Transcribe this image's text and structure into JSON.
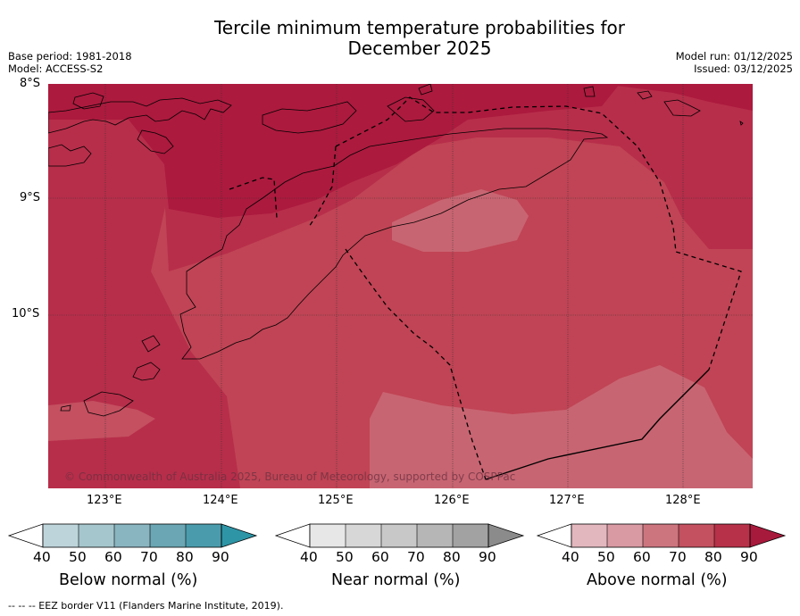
{
  "title": {
    "line1": "Tercile minimum temperature probabilities for",
    "line2": "December 2025"
  },
  "meta_left": {
    "base_period": "Base period: 1981-2018",
    "model": "Model: ACCESS-S2"
  },
  "meta_right": {
    "model_run": "Model run: 01/12/2025",
    "issued": "Issued: 03/12/2025"
  },
  "map": {
    "lat_labels": [
      "8°S",
      "9°S",
      "10°S"
    ],
    "lon_labels": [
      "123°E",
      "124°E",
      "125°E",
      "126°E",
      "127°E",
      "128°E"
    ],
    "copyright": "© Commonwealth of Australia 2025, Bureau of Meteorology, supported by COSPPac",
    "category": "Above normal",
    "probability_bands_percent": [
      90,
      80,
      70,
      60
    ],
    "colors": {
      "above_90": "#ac1a3e",
      "above_80": "#b72e4a",
      "above_70": "#c04455",
      "above_60": "#c86572"
    }
  },
  "colorbars": [
    {
      "title": "Below normal (%)",
      "ticks": [
        "40",
        "50",
        "60",
        "70",
        "80",
        "90"
      ],
      "colors": [
        "#bdd4da",
        "#a5c6cd",
        "#89b5c0",
        "#6aa6b3",
        "#4a9cac",
        "#2e95a6"
      ]
    },
    {
      "title": "Near normal (%)",
      "ticks": [
        "40",
        "50",
        "60",
        "70",
        "80",
        "90"
      ],
      "colors": [
        "#e7e7e7",
        "#d7d7d7",
        "#c8c8c8",
        "#b6b6b6",
        "#a2a2a2",
        "#8b8b8b"
      ]
    },
    {
      "title": "Above normal (%)",
      "ticks": [
        "40",
        "50",
        "60",
        "70",
        "80",
        "90"
      ],
      "colors": [
        "#e3b7be",
        "#d99aa3",
        "#cd757f",
        "#c3515f",
        "#b73148",
        "#a81a3c"
      ]
    }
  ],
  "footnote": "-- -- -- EEZ border V11 (Flanders Marine Institute, 2019)."
}
